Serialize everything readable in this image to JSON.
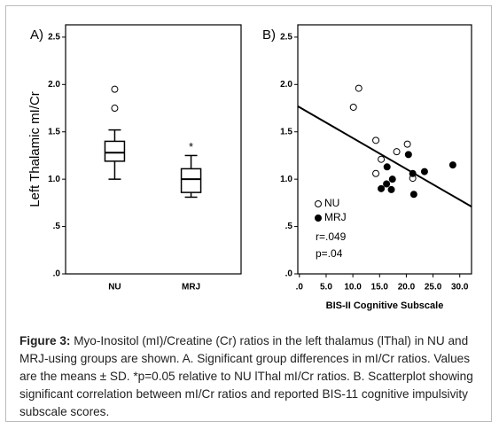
{
  "chart_data": [
    {
      "type": "box",
      "panel_label": "A)",
      "ylabel": "Left Thalamic mI/Cr",
      "categories": [
        "NU",
        "MRJ"
      ],
      "boxes": [
        {
          "whislo": 1.0,
          "q1": 1.19,
          "med": 1.28,
          "q3": 1.4,
          "whishi": 1.52,
          "fliers": [
            1.95,
            1.75
          ]
        },
        {
          "whislo": 0.81,
          "q1": 0.86,
          "med": 1.0,
          "q3": 1.11,
          "whishi": 1.25,
          "fliers": []
        }
      ],
      "color": "#000000",
      "annotations": [
        {
          "text": "*",
          "x": "MRJ",
          "y": 1.36
        }
      ],
      "ylim": [
        0,
        2.63
      ],
      "yticks": [
        {
          "value": 0,
          "label": ".0"
        },
        {
          "value": 0.5,
          "label": ".5"
        },
        {
          "value": 1,
          "label": "1.0"
        },
        1.5,
        {
          "value": 2,
          "label": "2.0"
        },
        2.5
      ]
    },
    {
      "type": "scatter",
      "panel_label": "B)",
      "xlabel": "BIS-II Cognitive Subscale",
      "series": [
        {
          "name": "NU",
          "marker": "open",
          "color": "#000000",
          "x": [
            10.1,
            11.1,
            14.3,
            15.3,
            18.2,
            20.2,
            21.2,
            14.3
          ],
          "values": [
            1.76,
            1.96,
            1.41,
            1.21,
            1.29,
            1.37,
            1.01,
            1.06
          ]
        },
        {
          "name": "MRJ",
          "marker": "filled",
          "color": "#000000",
          "x": [
            20.4,
            16.4,
            15.3,
            16.3,
            17.4,
            17.2,
            21.2,
            23.4,
            21.4,
            28.7
          ],
          "values": [
            1.26,
            1.13,
            0.9,
            0.95,
            1.0,
            0.89,
            1.06,
            1.08,
            0.84,
            1.15
          ]
        }
      ],
      "trendline": {
        "x": [
          -0.3,
          32.2
        ],
        "values": [
          1.77,
          0.71
        ]
      },
      "annotations": [
        "r=.049",
        "p=.04"
      ],
      "xlim": [
        -0.3,
        32.2
      ],
      "xticks": [
        {
          "value": 0,
          "label": ".0"
        },
        {
          "value": 5,
          "label": "5.0"
        },
        {
          "value": 10,
          "label": "10.0"
        },
        {
          "value": 15,
          "label": "15.0"
        },
        {
          "value": 20,
          "label": "20.0"
        },
        {
          "value": 25,
          "label": "25.0"
        },
        {
          "value": 30,
          "label": "30.0"
        }
      ],
      "ylim": [
        0,
        2.63
      ],
      "yticks": [
        {
          "value": 0,
          "label": ".0"
        },
        {
          "value": 0.5,
          "label": ".5"
        },
        {
          "value": 1,
          "label": "1.0"
        },
        1.5,
        {
          "value": 2,
          "label": "2.0"
        },
        2.5
      ]
    }
  ],
  "caption": {
    "label": "Figure 3:",
    "text": "Myo-Inositol (mI)/Creatine (Cr) ratios in the left thalamus (lThal) in NU and MRJ-using groups are shown. A. Significant group differences in mI/Cr ratios. Values are the means ± SD. *p=0.05 relative to NU lThal mI/Cr ratios. B. Scatterplot showing significant correlation between mI/Cr ratios and reported BIS-11 cognitive impulsivity subscale scores."
  }
}
